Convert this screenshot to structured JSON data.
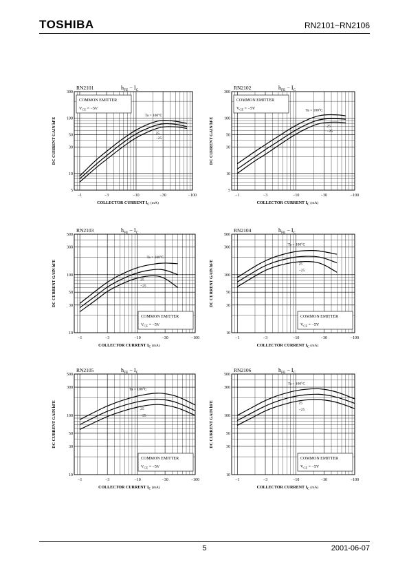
{
  "header": {
    "logo": "TOSHIBA",
    "part_range": "RN2101~RN2106"
  },
  "footer": {
    "page_number": "5",
    "date": "2001-06-07"
  },
  "chart_data": [
    {
      "type": "line",
      "part": "RN2101",
      "title_main": "h",
      "title_sub": "FE",
      "title_sep": " − I",
      "title_sub2": "C",
      "ylabel": "DC CURRENT GAIN  hFE",
      "xlabel": "COLLECTOR CURRENT  I",
      "xlabel_sub": "C",
      "xunit": "(mA)",
      "x_scale": "log",
      "y_scale": "log",
      "xlim": [
        -0.8,
        -100
      ],
      "ylim": [
        5,
        300
      ],
      "x_ticks": [
        "−1",
        "−3",
        "−10",
        "−30",
        "−100"
      ],
      "y_ticks": [
        "5",
        "10",
        "30",
        "50",
        "100",
        "300"
      ],
      "box_lines": [
        "COMMON EMITTER",
        "VCE = −5V"
      ],
      "box_position": "top-left",
      "series": [
        {
          "name": "Ta = 100°C",
          "x": [
            -1,
            -2,
            -3,
            -5,
            -10,
            -20,
            -30,
            -50,
            -80
          ],
          "y": [
            9,
            18,
            25,
            38,
            62,
            85,
            92,
            88,
            80
          ]
        },
        {
          "name": "25",
          "x": [
            -1,
            -2,
            -3,
            -5,
            -10,
            -20,
            -30,
            -50,
            -80
          ],
          "y": [
            8,
            15,
            21,
            32,
            53,
            72,
            80,
            78,
            70
          ]
        },
        {
          "name": "−25",
          "x": [
            -1,
            -2,
            -3,
            -5,
            -10,
            -20,
            -30,
            -50,
            -80
          ],
          "y": [
            7,
            13,
            18,
            27,
            45,
            62,
            70,
            70,
            65
          ]
        }
      ]
    },
    {
      "type": "line",
      "part": "RN2102",
      "title_main": "h",
      "title_sub": "FE",
      "title_sep": " − I",
      "title_sub2": "C",
      "ylabel": "DC CURRENT GAIN  hFE",
      "xlabel": "COLLECTOR CURRENT  I",
      "xlabel_sub": "C",
      "xunit": "(mA)",
      "x_scale": "log",
      "y_scale": "log",
      "xlim": [
        -0.8,
        -100
      ],
      "ylim": [
        5,
        300
      ],
      "x_ticks": [
        "−1",
        "−3",
        "−10",
        "−30",
        "−100"
      ],
      "y_ticks": [
        "5",
        "10",
        "30",
        "50",
        "100",
        "300"
      ],
      "box_lines": [
        "COMMON EMITTER",
        "VCE = −5V"
      ],
      "box_position": "top-left",
      "series": [
        {
          "name": "Ta = 100°C",
          "x": [
            -1,
            -2,
            -3,
            -5,
            -10,
            -20,
            -30,
            -50,
            -70
          ],
          "y": [
            15,
            25,
            33,
            47,
            75,
            105,
            115,
            115,
            110
          ]
        },
        {
          "name": "25",
          "x": [
            -1,
            -2,
            -3,
            -5,
            -10,
            -20,
            -30,
            -50,
            -70
          ],
          "y": [
            12,
            20,
            27,
            38,
            62,
            88,
            97,
            98,
            95
          ]
        },
        {
          "name": "−25",
          "x": [
            -1,
            -2,
            -3,
            -5,
            -10,
            -20,
            -30,
            -50,
            -70
          ],
          "y": [
            10,
            17,
            22,
            32,
            52,
            75,
            83,
            85,
            82
          ]
        }
      ]
    },
    {
      "type": "line",
      "part": "RN2103",
      "title_main": "h",
      "title_sub": "FE",
      "title_sep": " − I",
      "title_sub2": "C",
      "ylabel": "DC CURRENT GAIN  hFE",
      "xlabel": "COLLECTOR CURRENT  I",
      "xlabel_sub": "C",
      "xunit": "(mA)",
      "x_scale": "log",
      "y_scale": "log",
      "xlim": [
        -0.8,
        -100
      ],
      "ylim": [
        10,
        500
      ],
      "x_ticks": [
        "−1",
        "−3",
        "−10",
        "−30",
        "−100"
      ],
      "y_ticks": [
        "10",
        "30",
        "50",
        "100",
        "300",
        "500"
      ],
      "box_lines": [
        "COMMON EMITTER",
        "VCE = −5V"
      ],
      "box_position": "bottom-right",
      "series": [
        {
          "name": "Ta = 100°C",
          "x": [
            -1,
            -2,
            -3,
            -5,
            -10,
            -20,
            -30,
            -50
          ],
          "y": [
            32,
            55,
            75,
            100,
            135,
            155,
            160,
            155
          ]
        },
        {
          "name": "25",
          "x": [
            -1,
            -2,
            -3,
            -5,
            -10,
            -20,
            -30,
            -50
          ],
          "y": [
            27,
            45,
            62,
            82,
            110,
            125,
            122,
            100
          ]
        },
        {
          "name": "−25",
          "x": [
            -1,
            -2,
            -3,
            -5,
            -10,
            -20,
            -30,
            -50
          ],
          "y": [
            23,
            38,
            52,
            68,
            90,
            98,
            88,
            60
          ]
        }
      ]
    },
    {
      "type": "line",
      "part": "RN2104",
      "title_main": "h",
      "title_sub": "FE",
      "title_sep": " − I",
      "title_sub2": "C",
      "ylabel": "DC CURRENT GAIN  hFE",
      "xlabel": "COLLECTOR CURRENT  I",
      "xlabel_sub": "C",
      "xunit": "(mA)",
      "x_scale": "log",
      "y_scale": "log",
      "xlim": [
        -0.8,
        -100
      ],
      "ylim": [
        10,
        500
      ],
      "x_ticks": [
        "−1",
        "−3",
        "−10",
        "−30",
        "−100"
      ],
      "y_ticks": [
        "10",
        "30",
        "50",
        "100",
        "300",
        "500"
      ],
      "box_lines": [
        "COMMON EMITTER",
        "VCE = −5V"
      ],
      "box_position": "bottom-right",
      "series": [
        {
          "name": "Ta = 100°C",
          "x": [
            -1,
            -2,
            -3,
            -5,
            -10,
            -20,
            -30,
            -50
          ],
          "y": [
            90,
            140,
            175,
            215,
            255,
            265,
            250,
            225
          ]
        },
        {
          "name": "25",
          "x": [
            -1,
            -2,
            -3,
            -5,
            -10,
            -20,
            -30,
            -50
          ],
          "y": [
            75,
            115,
            145,
            175,
            205,
            210,
            195,
            160
          ]
        },
        {
          "name": "−25",
          "x": [
            -1,
            -2,
            -3,
            -5,
            -10,
            -20,
            -30,
            -50
          ],
          "y": [
            62,
            95,
            120,
            145,
            168,
            170,
            150,
            110
          ]
        }
      ]
    },
    {
      "type": "line",
      "part": "RN2105",
      "title_main": "h",
      "title_sub": "FE",
      "title_sep": " − I",
      "title_sub2": "C",
      "ylabel": "DC CURRENT GAIN  hFE",
      "xlabel": "COLLECTOR CURRENT  I",
      "xlabel_sub": "C",
      "xunit": "(mA)",
      "x_scale": "log",
      "y_scale": "log",
      "xlim": [
        -0.8,
        -100
      ],
      "ylim": [
        10,
        500
      ],
      "x_ticks": [
        "−1",
        "−3",
        "−10",
        "−30",
        "−100"
      ],
      "y_ticks": [
        "10",
        "30",
        "50",
        "100",
        "300",
        "500"
      ],
      "box_lines": [
        "COMMON EMITTER",
        "VCE = −5V"
      ],
      "box_position": "bottom-right",
      "series": [
        {
          "name": "Ta = 100°C",
          "x": [
            -1,
            -2,
            -3,
            -5,
            -10,
            -20,
            -30,
            -50,
            -100
          ],
          "y": [
            85,
            120,
            145,
            175,
            215,
            240,
            235,
            210,
            150
          ]
        },
        {
          "name": "25",
          "x": [
            -1,
            -2,
            -3,
            -5,
            -10,
            -20,
            -30,
            -50,
            -100
          ],
          "y": [
            70,
            98,
            118,
            142,
            172,
            190,
            185,
            165,
            120
          ]
        },
        {
          "name": "−25",
          "x": [
            -1,
            -2,
            -3,
            -5,
            -10,
            -20,
            -30,
            -50,
            -100
          ],
          "y": [
            58,
            80,
            96,
            115,
            140,
            155,
            150,
            135,
            100
          ]
        }
      ]
    },
    {
      "type": "line",
      "part": "RN2106",
      "title_main": "h",
      "title_sub": "FE",
      "title_sep": " − I",
      "title_sub2": "C",
      "ylabel": "DC CURRENT GAIN  hFE",
      "xlabel": "COLLECTOR CURRENT  I",
      "xlabel_sub": "C",
      "xunit": "(mA)",
      "x_scale": "log",
      "y_scale": "log",
      "xlim": [
        -0.8,
        -100
      ],
      "ylim": [
        10,
        500
      ],
      "x_ticks": [
        "−1",
        "−3",
        "−10",
        "−30",
        "−100"
      ],
      "y_ticks": [
        "10",
        "30",
        "50",
        "100",
        "300",
        "500"
      ],
      "box_lines": [
        "COMMON EMITTER",
        "VCE = −5V"
      ],
      "box_position": "bottom-right",
      "series": [
        {
          "name": "Ta = 100°C",
          "x": [
            -1,
            -2,
            -3,
            -5,
            -10,
            -20,
            -30,
            -50,
            -100
          ],
          "y": [
            100,
            145,
            180,
            220,
            265,
            285,
            278,
            250,
            190
          ]
        },
        {
          "name": "25",
          "x": [
            -1,
            -2,
            -3,
            -5,
            -10,
            -20,
            -30,
            -50,
            -100
          ],
          "y": [
            82,
            118,
            145,
            178,
            215,
            230,
            225,
            205,
            160
          ]
        },
        {
          "name": "−25",
          "x": [
            -1,
            -2,
            -3,
            -5,
            -10,
            -20,
            -30,
            -50,
            -100
          ],
          "y": [
            68,
            97,
            120,
            145,
            175,
            188,
            183,
            168,
            130
          ]
        }
      ]
    }
  ]
}
